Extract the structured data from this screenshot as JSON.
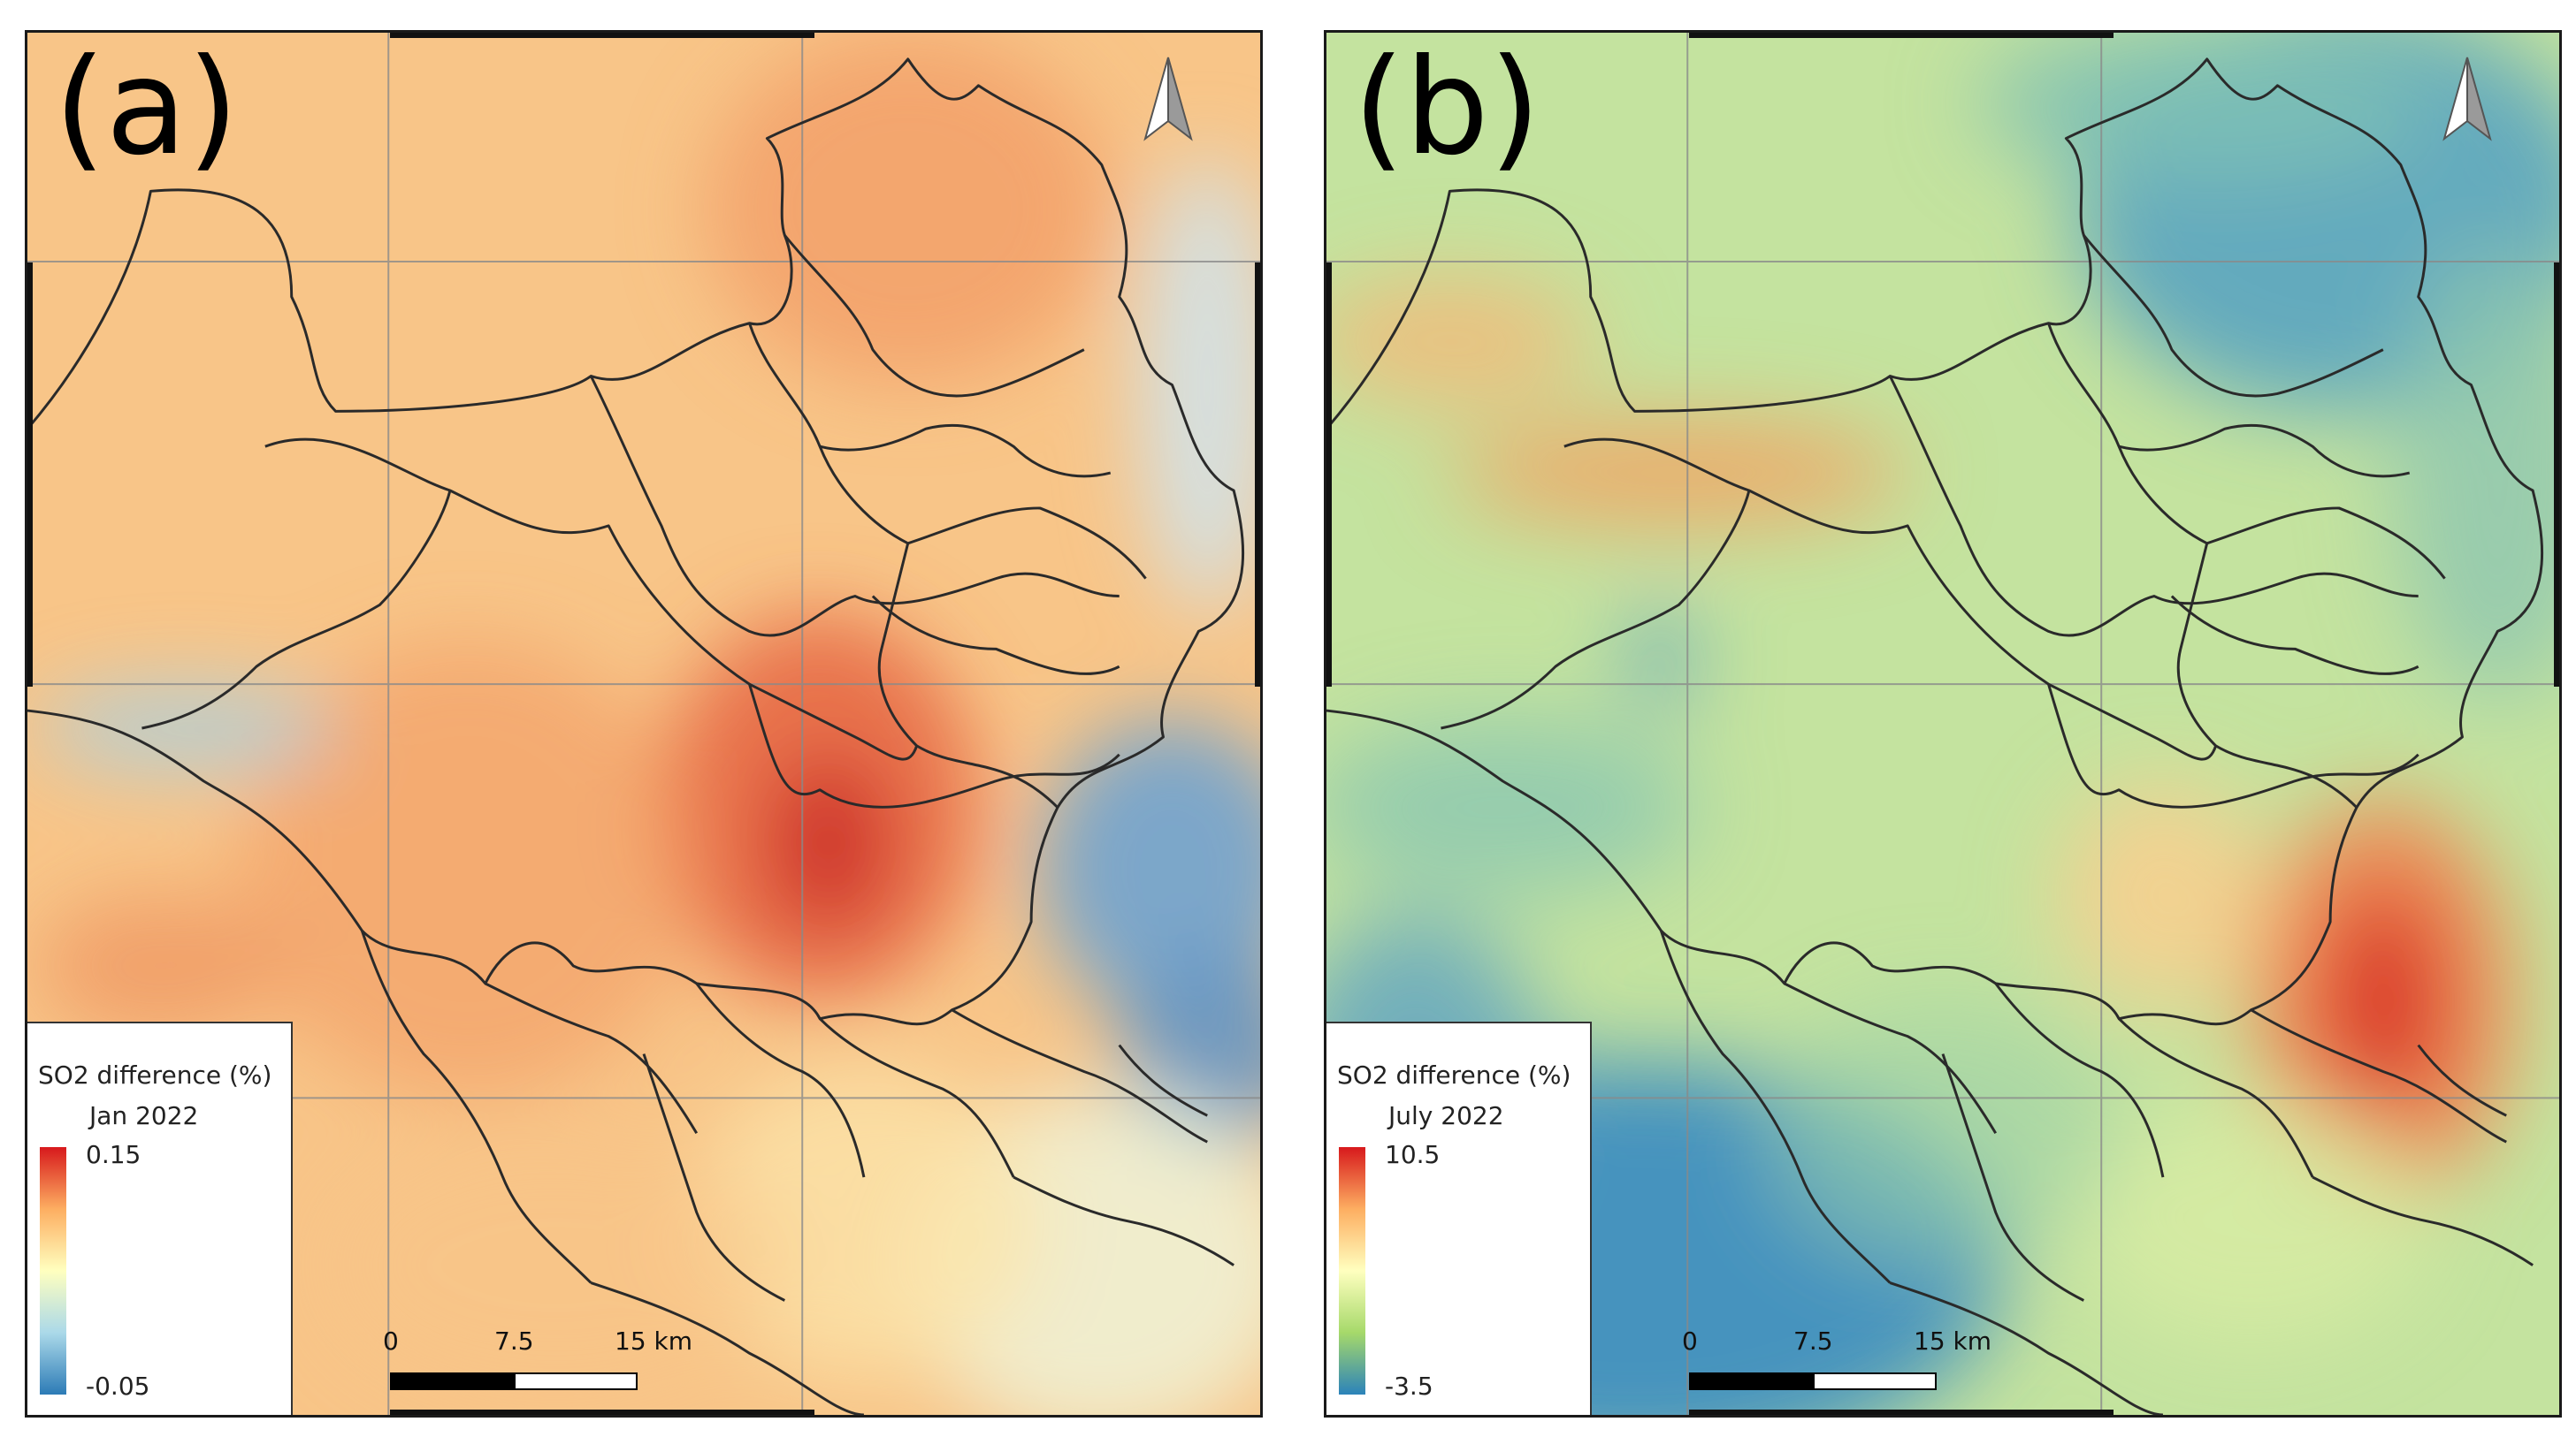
{
  "panels": [
    {
      "label": "(a)",
      "legend_title": "SO2 difference (%)",
      "legend_period": "Jan 2022",
      "legend_max": "0.15",
      "legend_min": "-0.05",
      "colormap": [
        "#d7191c",
        "#fdae61",
        "#ffffbf",
        "#abd9e9",
        "#2c7bb6"
      ],
      "scale_ticks": [
        "0",
        "7.5",
        "15 km"
      ]
    },
    {
      "label": "(b)",
      "legend_title": "SO2 difference (%)",
      "legend_period": "July 2022",
      "legend_max": "10.5",
      "legend_min": "-3.5",
      "colormap": [
        "#d7191c",
        "#fdae61",
        "#ffffbf",
        "#a6d96a",
        "#2b83ba"
      ],
      "scale_ticks": [
        "0",
        "7.5",
        "15 km"
      ]
    }
  ]
}
